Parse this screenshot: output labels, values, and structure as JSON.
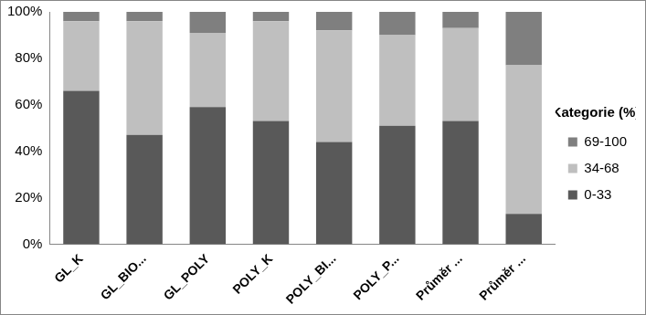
{
  "chart_data": {
    "type": "bar",
    "stacked": true,
    "categories": [
      "GL_K",
      "GL_BIO...",
      "GL_POLY",
      "POLY_K",
      "POLY_BI...",
      "POLY_P...",
      "Průměr ...",
      "Průměr ..."
    ],
    "series": [
      {
        "name": "0-33",
        "color": "#595959",
        "values": [
          66,
          47,
          59,
          53,
          44,
          51,
          53,
          13
        ]
      },
      {
        "name": "34-68",
        "color": "#bfbfbf",
        "values": [
          30,
          49,
          32,
          43,
          48,
          39,
          40,
          64
        ]
      },
      {
        "name": "69-100",
        "color": "#7f7f7f",
        "values": [
          4,
          4,
          9,
          4,
          8,
          10,
          7,
          23
        ]
      }
    ],
    "legend_title": "Kategorie (%)",
    "legend": "right",
    "ylim": [
      0,
      100
    ],
    "yticks": [
      {
        "value": 0,
        "label": "0%"
      },
      {
        "value": 20,
        "label": "20%"
      },
      {
        "value": 40,
        "label": "40%"
      },
      {
        "value": 60,
        "label": "60%"
      },
      {
        "value": 80,
        "label": "80%"
      },
      {
        "value": 100,
        "label": "100%"
      }
    ],
    "grid": false
  }
}
